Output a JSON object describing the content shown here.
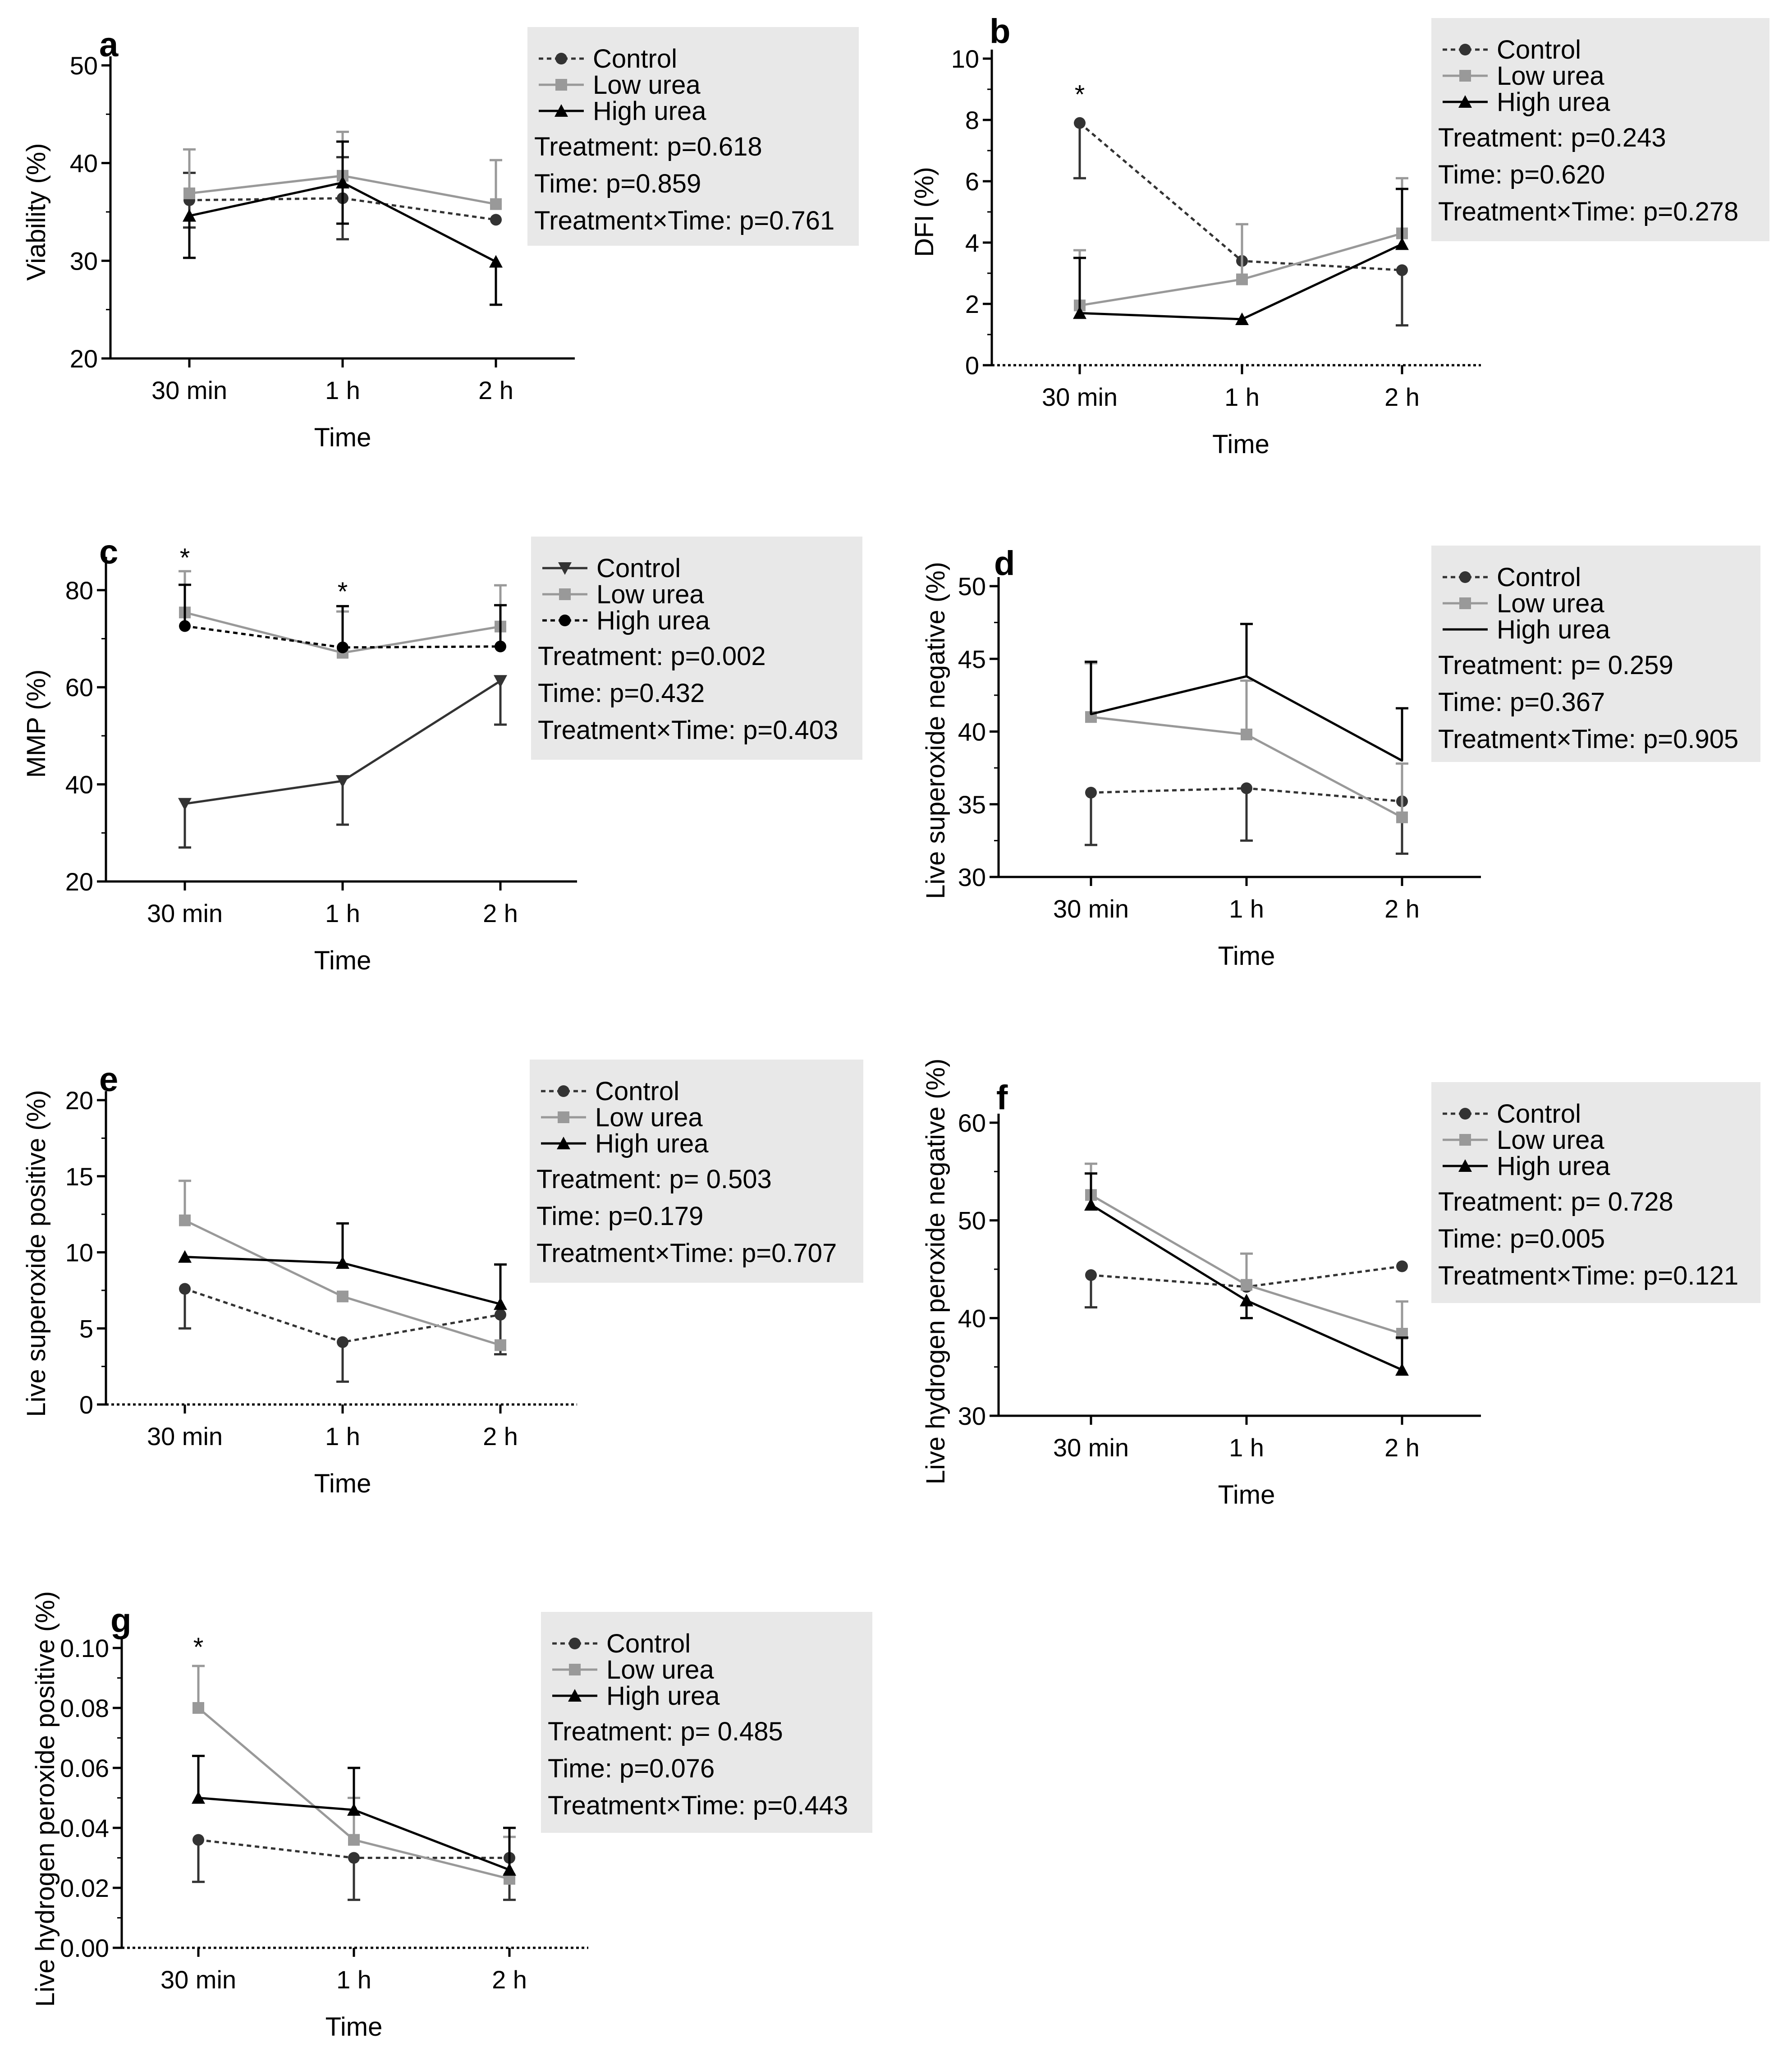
{
  "chart_data": [
    {
      "panel": "a",
      "type": "line",
      "xlabel": "Time",
      "ylabel": "Viability (%)",
      "categories": [
        "30 min",
        "1 h",
        "2 h"
      ],
      "ylim": [
        20,
        50
      ],
      "yticks": [
        20,
        30,
        40,
        50
      ],
      "yticklabels": [
        "20",
        "30",
        "40",
        "50"
      ],
      "zero_dashed": false,
      "legend": [
        "Control",
        "Low urea",
        "High urea"
      ],
      "stats": [
        "Treatment: p=0.618",
        "Time: p=0.859",
        "Treatment×Time: p=0.761"
      ],
      "series": [
        {
          "name": "Control",
          "marker": "circle",
          "color": "#333333",
          "dash": true,
          "values": [
            36.2,
            36.4,
            34.2
          ],
          "errors": [
            [
              2.8,
              2.8
            ],
            [
              4.2,
              4.2
            ],
            [
              0,
              0
            ]
          ],
          "err_dir": [
            "both",
            "both",
            "none"
          ]
        },
        {
          "name": "Low urea",
          "marker": "square",
          "color": "#999999",
          "dash": false,
          "values": [
            36.9,
            38.7,
            35.8
          ],
          "errors": [
            [
              4.5,
              0
            ],
            [
              4.5,
              0
            ],
            [
              4.5,
              0
            ]
          ],
          "err_dir": [
            "up",
            "up",
            "up"
          ]
        },
        {
          "name": "High urea",
          "marker": "triangle",
          "color": "#000000",
          "dash": false,
          "values": [
            34.6,
            38.0,
            29.9
          ],
          "errors": [
            [
              4.3,
              4.3
            ],
            [
              4.2,
              4.2
            ],
            [
              4.4,
              4.4
            ]
          ],
          "err_dir": [
            "down",
            "both",
            "down"
          ]
        }
      ],
      "sig": []
    },
    {
      "panel": "b",
      "type": "line",
      "xlabel": "Time",
      "ylabel": "DFI (%)",
      "categories": [
        "30 min",
        "1 h",
        "2 h"
      ],
      "ylim": [
        0,
        10
      ],
      "yticks": [
        0,
        2,
        4,
        6,
        8,
        10
      ],
      "yticklabels": [
        "0",
        "2",
        "4",
        "6",
        "8",
        "10"
      ],
      "zero_dashed": true,
      "legend": [
        "Control",
        "Low urea",
        "High urea"
      ],
      "stats": [
        "Treatment: p=0.243",
        "Time: p=0.620",
        "Treatment×Time: p=0.278"
      ],
      "series": [
        {
          "name": "Control",
          "marker": "circle",
          "color": "#333333",
          "dash": true,
          "values": [
            7.9,
            3.4,
            3.1
          ],
          "errors": [
            [
              1.8,
              0
            ],
            [
              0,
              0
            ],
            [
              1.8,
              0
            ]
          ],
          "err_dir": [
            "down",
            "none",
            "down"
          ]
        },
        {
          "name": "Low urea",
          "marker": "square",
          "color": "#999999",
          "dash": false,
          "values": [
            1.95,
            2.8,
            4.3
          ],
          "errors": [
            [
              1.8,
              0
            ],
            [
              1.8,
              0
            ],
            [
              1.8,
              0
            ]
          ],
          "err_dir": [
            "up",
            "up",
            "up"
          ]
        },
        {
          "name": "High urea",
          "marker": "triangle",
          "color": "#000000",
          "dash": false,
          "values": [
            1.7,
            1.5,
            3.95
          ],
          "errors": [
            [
              1.8,
              0
            ],
            [
              0,
              0
            ],
            [
              1.8,
              0
            ]
          ],
          "err_dir": [
            "up",
            "none",
            "up"
          ]
        }
      ],
      "sig": [
        {
          "index": 0,
          "label": "*",
          "y": 8.8
        }
      ]
    },
    {
      "panel": "c",
      "type": "line",
      "xlabel": "Time",
      "ylabel": "MMP (%)",
      "categories": [
        "30 min",
        "1 h",
        "2 h"
      ],
      "ylim": [
        20,
        85
      ],
      "yticks": [
        20,
        40,
        60,
        80
      ],
      "yticklabels": [
        "20",
        "40",
        "60",
        "80"
      ],
      "zero_dashed": false,
      "legend": [
        "Control",
        "Low urea",
        "High urea"
      ],
      "stats": [
        "Treatment: p=0.002",
        "Time: p=0.432",
        "Treatment×Time: p=0.403"
      ],
      "series": [
        {
          "name": "Control",
          "marker": "tridown",
          "color": "#333333",
          "dash": false,
          "values": [
            36,
            40.7,
            61.3
          ],
          "errors": [
            [
              9,
              0
            ],
            [
              9,
              0
            ],
            [
              9,
              0
            ]
          ],
          "err_dir": [
            "down",
            "down",
            "down"
          ]
        },
        {
          "name": "Low urea",
          "marker": "square",
          "color": "#999999",
          "dash": false,
          "values": [
            75.4,
            67.1,
            72.5
          ],
          "errors": [
            [
              8.5,
              0
            ],
            [
              8.5,
              0
            ],
            [
              8.5,
              0
            ]
          ],
          "err_dir": [
            "up",
            "up",
            "up"
          ]
        },
        {
          "name": "High urea",
          "marker": "circle",
          "color": "#000000",
          "dash": true,
          "values": [
            72.6,
            68.2,
            68.4
          ],
          "errors": [
            [
              8.5,
              0
            ],
            [
              8.5,
              0
            ],
            [
              8.5,
              0
            ]
          ],
          "err_dir": [
            "up",
            "up",
            "up"
          ]
        }
      ],
      "sig": [
        {
          "index": 0,
          "label": "*",
          "y": 86.5
        },
        {
          "index": 1,
          "label": "*",
          "y": 79.5
        }
      ]
    },
    {
      "panel": "d",
      "type": "line",
      "xlabel": "Time",
      "ylabel": "Live superoxide negative (%)",
      "categories": [
        "30 min",
        "1 h",
        "2 h"
      ],
      "ylim": [
        30,
        50
      ],
      "yticks": [
        30,
        35,
        40,
        45,
        50
      ],
      "yticklabels": [
        "30",
        "35",
        "40",
        "45",
        "50"
      ],
      "zero_dashed": false,
      "legend": [
        "Control",
        "Low urea",
        "High urea"
      ],
      "stats": [
        "Treatment: p= 0.259",
        "Time: p=0.367",
        "Treatment×Time: p=0.905"
      ],
      "series": [
        {
          "name": "Control",
          "marker": "circle",
          "color": "#333333",
          "dash": true,
          "values": [
            35.8,
            36.1,
            35.2
          ],
          "errors": [
            [
              3.6,
              0
            ],
            [
              3.6,
              0
            ],
            [
              3.6,
              0
            ]
          ],
          "err_dir": [
            "down",
            "down",
            "down"
          ]
        },
        {
          "name": "Low urea",
          "marker": "square",
          "color": "#999999",
          "dash": false,
          "values": [
            41.0,
            39.8,
            34.1
          ],
          "errors": [
            [
              3.7,
              0
            ],
            [
              3.7,
              0
            ],
            [
              3.7,
              0
            ]
          ],
          "err_dir": [
            "up",
            "up",
            "up"
          ]
        },
        {
          "name": "High urea",
          "marker": "line",
          "color": "#000000",
          "dash": false,
          "values": [
            41.2,
            43.8,
            38.0
          ],
          "errors": [
            [
              3.6,
              0
            ],
            [
              3.6,
              0
            ],
            [
              3.6,
              0
            ]
          ],
          "err_dir": [
            "up",
            "up",
            "up"
          ]
        }
      ],
      "sig": []
    },
    {
      "panel": "e",
      "type": "line",
      "xlabel": "Time",
      "ylabel": "Live superoxide positive (%)",
      "categories": [
        "30 min",
        "1 h",
        "2 h"
      ],
      "ylim": [
        0,
        20
      ],
      "yticks": [
        0,
        5,
        10,
        15,
        20
      ],
      "yticklabels": [
        "0",
        "5",
        "10",
        "15",
        "20"
      ],
      "zero_dashed": true,
      "legend": [
        "Control",
        "Low urea",
        "High urea"
      ],
      "stats": [
        "Treatment: p= 0.503",
        "Time: p=0.179",
        "Treatment×Time: p=0.707"
      ],
      "series": [
        {
          "name": "Control",
          "marker": "circle",
          "color": "#333333",
          "dash": true,
          "values": [
            7.6,
            4.1,
            5.9
          ],
          "errors": [
            [
              2.6,
              0
            ],
            [
              2.6,
              0
            ],
            [
              2.6,
              0
            ]
          ],
          "err_dir": [
            "down",
            "down",
            "down"
          ]
        },
        {
          "name": "Low urea",
          "marker": "square",
          "color": "#999999",
          "dash": false,
          "values": [
            12.1,
            7.1,
            3.9
          ],
          "errors": [
            [
              2.6,
              0
            ],
            [
              0,
              0
            ],
            [
              0,
              0
            ]
          ],
          "err_dir": [
            "up",
            "none",
            "none"
          ]
        },
        {
          "name": "High urea",
          "marker": "triangle",
          "color": "#000000",
          "dash": false,
          "values": [
            9.7,
            9.3,
            6.6
          ],
          "errors": [
            [
              0,
              0
            ],
            [
              2.6,
              0
            ],
            [
              2.6,
              0
            ]
          ],
          "err_dir": [
            "none",
            "up",
            "up"
          ]
        }
      ],
      "sig": []
    },
    {
      "panel": "f",
      "type": "line",
      "xlabel": "Time",
      "ylabel": "Live hydrogen peroxide negative (%)",
      "categories": [
        "30 min",
        "1 h",
        "2 h"
      ],
      "ylim": [
        30,
        60
      ],
      "yticks": [
        30,
        40,
        50,
        60
      ],
      "yticklabels": [
        "30",
        "40",
        "50",
        "60"
      ],
      "zero_dashed": false,
      "legend": [
        "Control",
        "Low urea",
        "High urea"
      ],
      "stats": [
        "Treatment: p= 0.728",
        "Time: p=0.005",
        "Treatment×Time: p=0.121"
      ],
      "series": [
        {
          "name": "Control",
          "marker": "circle",
          "color": "#333333",
          "dash": true,
          "values": [
            44.4,
            43.2,
            45.3
          ],
          "errors": [
            [
              3.3,
              0
            ],
            [
              0,
              0
            ],
            [
              0,
              0
            ]
          ],
          "err_dir": [
            "down",
            "none",
            "none"
          ]
        },
        {
          "name": "Low urea",
          "marker": "square",
          "color": "#999999",
          "dash": false,
          "values": [
            52.6,
            43.4,
            38.4
          ],
          "errors": [
            [
              3.2,
              0
            ],
            [
              3.2,
              0
            ],
            [
              3.3,
              0
            ]
          ],
          "err_dir": [
            "up",
            "up",
            "up"
          ]
        },
        {
          "name": "High urea",
          "marker": "triangle",
          "color": "#000000",
          "dash": false,
          "values": [
            51.6,
            41.8,
            34.7
          ],
          "errors": [
            [
              3.2,
              0
            ],
            [
              1.8,
              0
            ],
            [
              3.3,
              0
            ]
          ],
          "err_dir": [
            "up",
            "down",
            "up"
          ]
        }
      ],
      "sig": []
    },
    {
      "panel": "g",
      "type": "line",
      "xlabel": "Time",
      "ylabel": "Live hydrogen peroxide positive (%)",
      "categories": [
        "30 min",
        "1 h",
        "2 h"
      ],
      "ylim": [
        0,
        0.1
      ],
      "yticks": [
        0,
        0.02,
        0.04,
        0.06,
        0.08,
        0.1
      ],
      "yticklabels": [
        "0.00",
        "0.02",
        "0.04",
        "0.06",
        "0.08",
        "0.10"
      ],
      "zero_dashed": true,
      "legend": [
        "Control",
        "Low urea",
        "High urea"
      ],
      "stats": [
        "Treatment: p= 0.485",
        "Time: p=0.076",
        "Treatment×Time: p=0.443"
      ],
      "series": [
        {
          "name": "Control",
          "marker": "circle",
          "color": "#333333",
          "dash": true,
          "values": [
            0.036,
            0.03,
            0.03
          ],
          "errors": [
            [
              0.014,
              0
            ],
            [
              0.014,
              0
            ],
            [
              0.014,
              0
            ]
          ],
          "err_dir": [
            "down",
            "down",
            "down"
          ]
        },
        {
          "name": "Low urea",
          "marker": "square",
          "color": "#999999",
          "dash": false,
          "values": [
            0.08,
            0.036,
            0.023
          ],
          "errors": [
            [
              0.014,
              0
            ],
            [
              0.014,
              0
            ],
            [
              0.014,
              0
            ]
          ],
          "err_dir": [
            "up",
            "up",
            "up"
          ]
        },
        {
          "name": "High urea",
          "marker": "triangle",
          "color": "#000000",
          "dash": false,
          "values": [
            0.05,
            0.046,
            0.026
          ],
          "errors": [
            [
              0.014,
              0
            ],
            [
              0.014,
              0
            ],
            [
              0.014,
              0
            ]
          ],
          "err_dir": [
            "up",
            "up",
            "up"
          ]
        }
      ],
      "sig": [
        {
          "index": 0,
          "label": "*",
          "y": 0.1
        }
      ]
    }
  ]
}
